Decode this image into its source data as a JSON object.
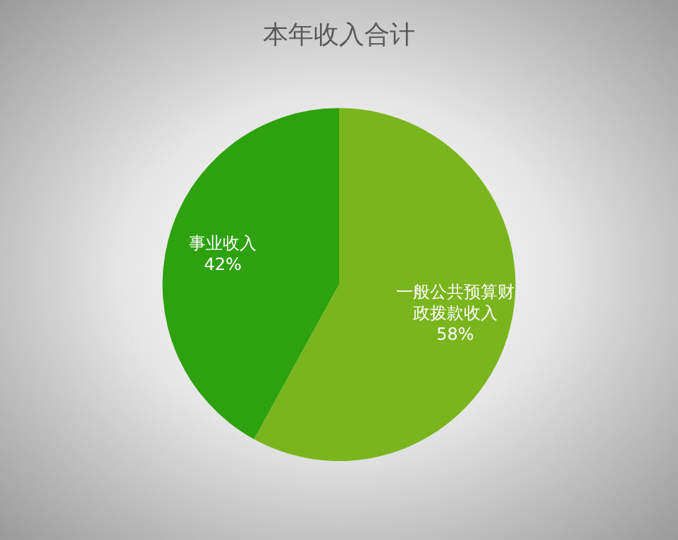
{
  "chart_data": {
    "type": "pie",
    "title": "本年收入合计",
    "categories": [
      "一般公共预算财政拨款收入",
      "事业收入"
    ],
    "values": [
      58,
      42
    ],
    "colors": [
      "#7ab51d",
      "#2ea10f"
    ],
    "value_labels": [
      "58%",
      "42%"
    ],
    "legend": false
  }
}
